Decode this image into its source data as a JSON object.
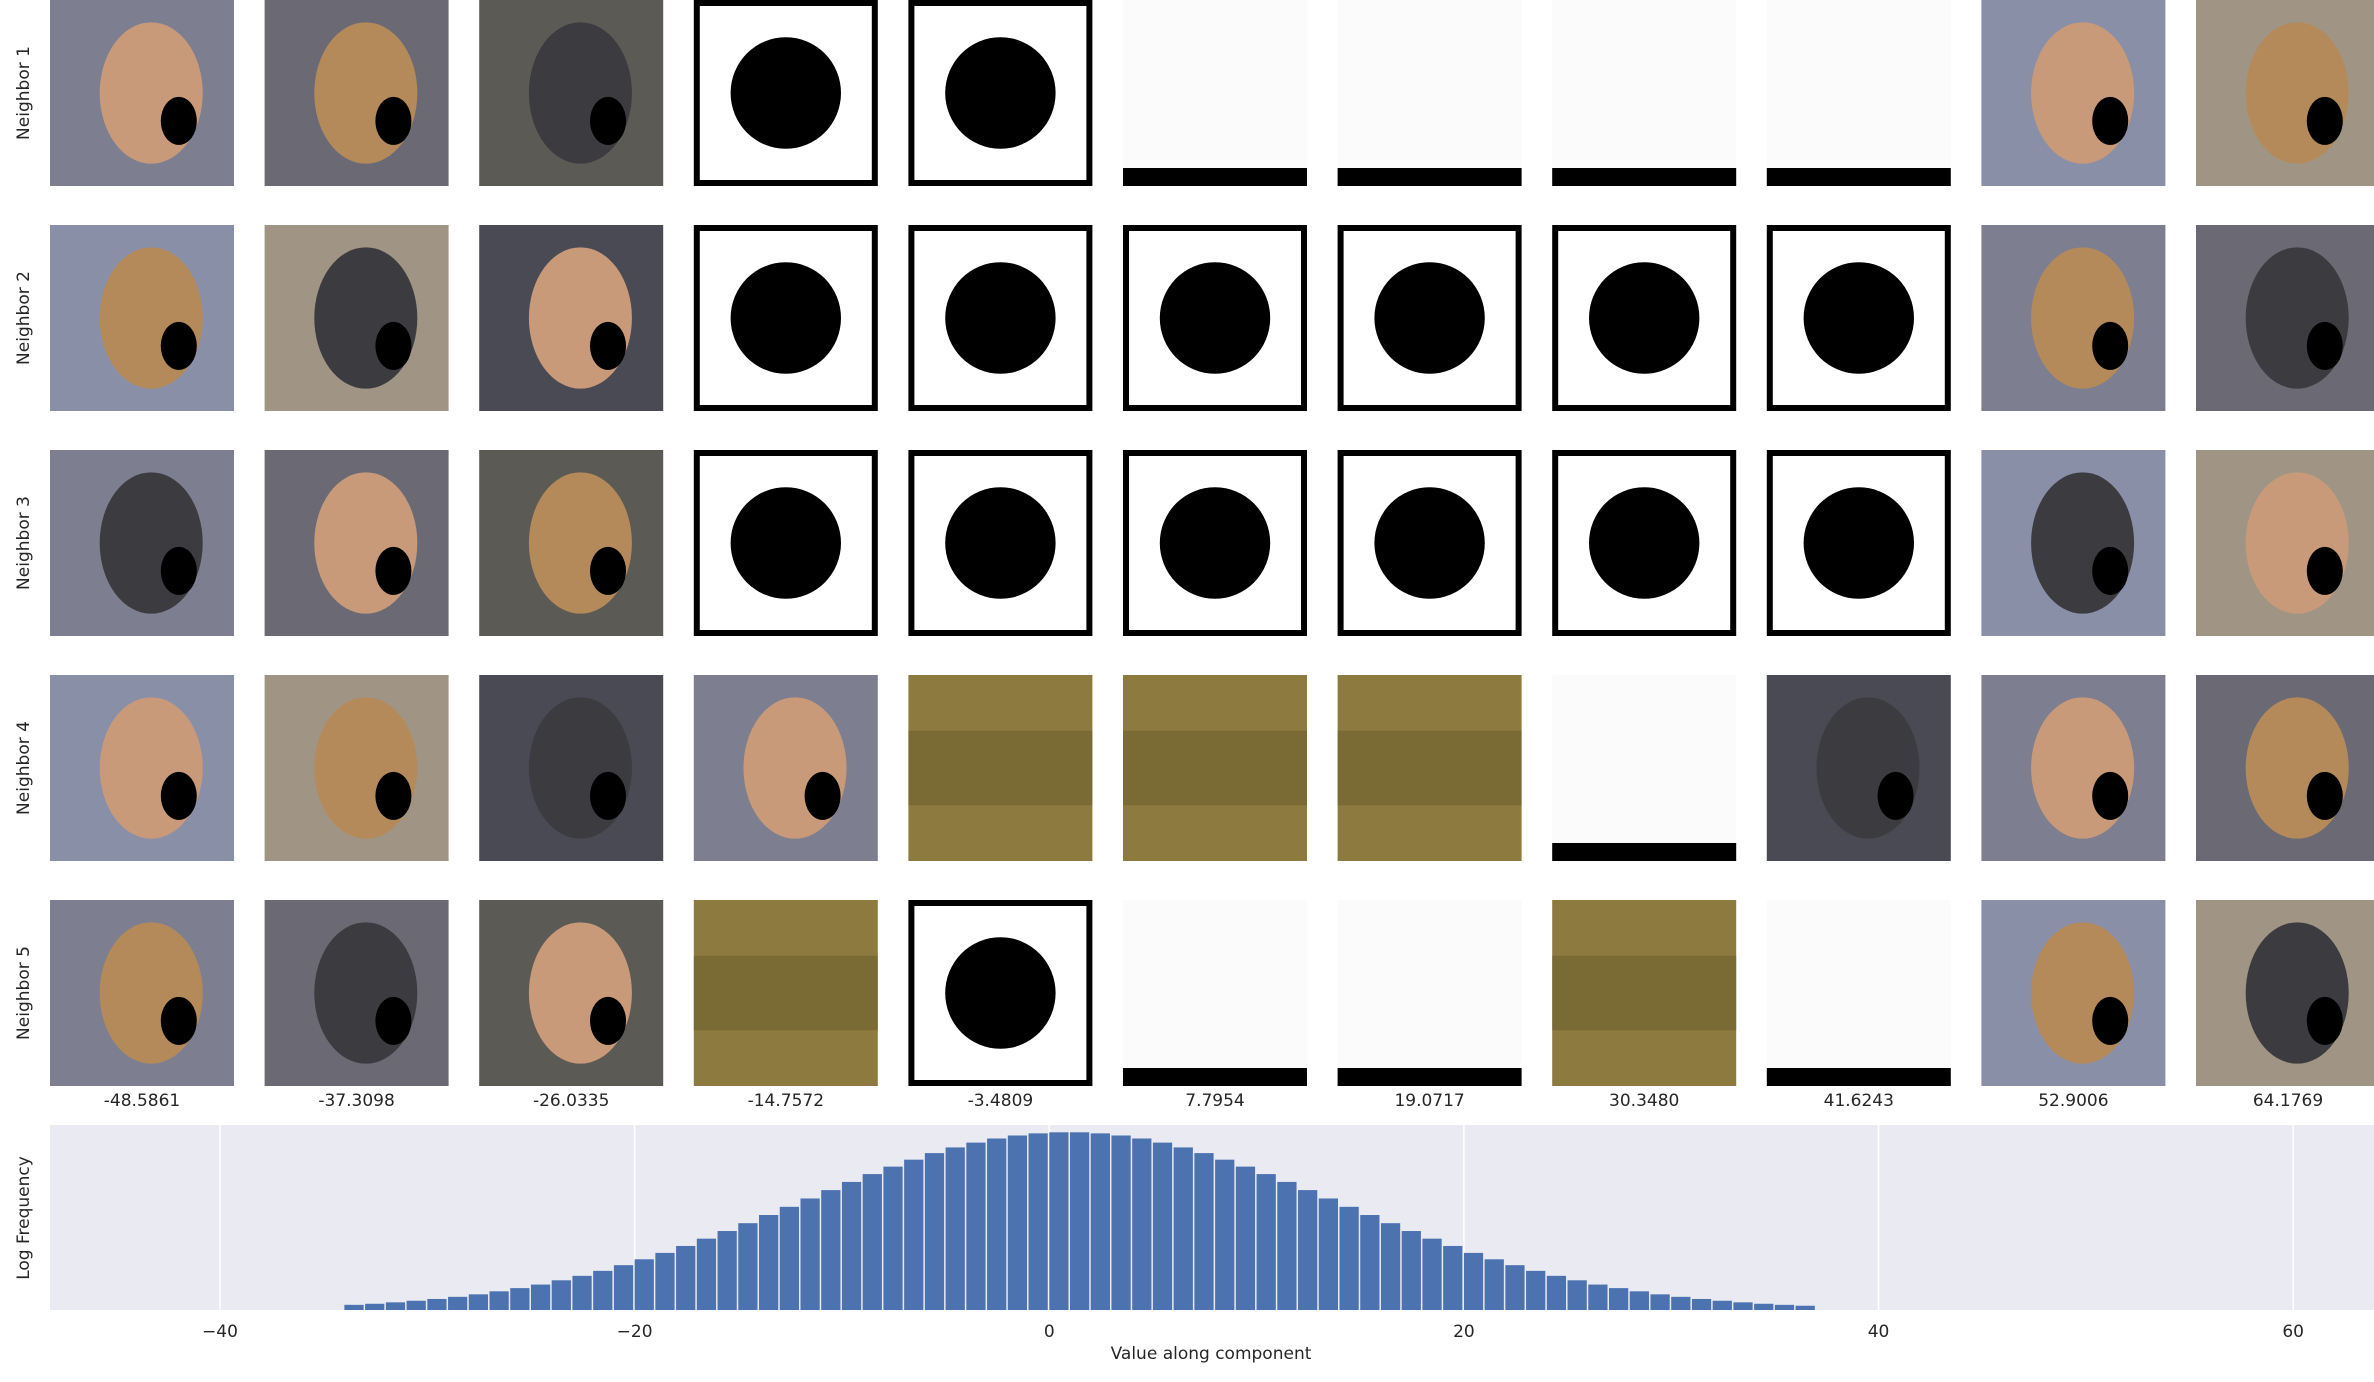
{
  "figure": {
    "row_labels": [
      "Neighbor 1",
      "Neighbor 2",
      "Neighbor 3",
      "Neighbor 4",
      "Neighbor 5"
    ],
    "column_labels": [
      "-48.5861",
      "-37.3098",
      "-26.0335",
      "-14.7572",
      "-3.4809",
      "7.7954",
      "19.0717",
      "30.3480",
      "41.6243",
      "52.9006",
      "64.1769"
    ]
  },
  "chart_data": {
    "type": "histogram",
    "xlabel": "Value along component",
    "ylabel": "Log Frequency",
    "bins": [
      -34,
      -33,
      -32,
      -31,
      -30,
      -29,
      -28,
      -27,
      -26,
      -25,
      -24,
      -23,
      -22,
      -21,
      -20,
      -19,
      -18,
      -17,
      -16,
      -15,
      -14,
      -13,
      -12,
      -11,
      -10,
      -9,
      -8,
      -7,
      -6,
      -5,
      -4,
      -3,
      -2,
      -1,
      0,
      1,
      2,
      3,
      4,
      5,
      6,
      7,
      8,
      9,
      10,
      11,
      12,
      13,
      14,
      15,
      16,
      17,
      18,
      19,
      20,
      21,
      22,
      23,
      24,
      25,
      26,
      27,
      28,
      29,
      30,
      31,
      32,
      33,
      34,
      35,
      36,
      37
    ],
    "values": [
      0.029,
      0.035,
      0.043,
      0.052,
      0.062,
      0.074,
      0.088,
      0.105,
      0.123,
      0.143,
      0.167,
      0.192,
      0.22,
      0.252,
      0.285,
      0.321,
      0.36,
      0.401,
      0.444,
      0.488,
      0.534,
      0.58,
      0.627,
      0.674,
      0.72,
      0.764,
      0.806,
      0.845,
      0.882,
      0.914,
      0.941,
      0.964,
      0.981,
      0.993,
      0.999,
      0.999,
      0.993,
      0.981,
      0.964,
      0.941,
      0.914,
      0.882,
      0.845,
      0.806,
      0.764,
      0.72,
      0.674,
      0.627,
      0.58,
      0.534,
      0.488,
      0.444,
      0.401,
      0.36,
      0.321,
      0.285,
      0.252,
      0.22,
      0.192,
      0.167,
      0.143,
      0.123,
      0.105,
      0.088,
      0.074,
      0.062,
      0.052,
      0.043,
      0.035,
      0.029,
      0.024
    ],
    "color": "#4c72b0",
    "xlim": [
      -48.2,
      63.9
    ],
    "ylim": [
      0,
      1.04
    ],
    "xticks": [
      {
        "value": -40,
        "label": "−40"
      },
      {
        "value": -20,
        "label": "−20"
      },
      0,
      20,
      40,
      60
    ],
    "grid": true
  }
}
